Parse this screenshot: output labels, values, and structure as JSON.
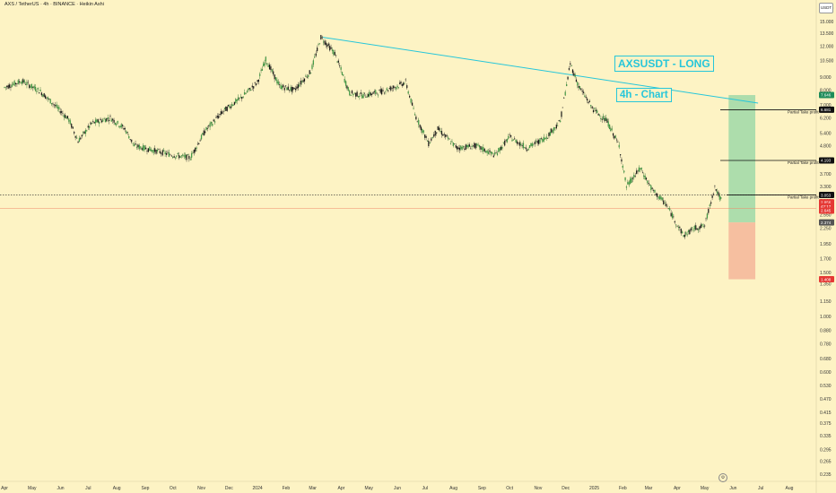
{
  "header": {
    "symbol": "AXS / TetherUS · 4h · BINANCE · Heikin Ashi"
  },
  "currency_badge": "USDT",
  "annotations": {
    "title": "AXSUSDT - LONG",
    "subtitle": "4h - Chart"
  },
  "colors": {
    "background": "#fdf3c4",
    "trendline": "#26c6da",
    "profit_zone": "#9fd8a8",
    "loss_zone": "#f5b59a",
    "candle_up": "#1b5e20",
    "candle_down": "#222222",
    "badge_green": "#1e8c5a",
    "badge_red": "#e53935",
    "badge_black": "#111111",
    "badge_gray": "#555555"
  },
  "partial_take_profit_label": "Partial Take profit",
  "price_badges": [
    {
      "text": "7.646",
      "price": 7.646,
      "color": "#1e8c5a"
    },
    {
      "text": "6.681",
      "price": 6.681,
      "color": "#111111"
    },
    {
      "text": "4.193",
      "price": 4.193,
      "color": "#111111"
    },
    {
      "text": "3.053",
      "price": 3.053,
      "color": "#111111"
    },
    {
      "text": "2.856",
      "price": 2.856,
      "color": "#e53935"
    },
    {
      "text": "42:17",
      "price": 2.75,
      "color": "#e53935"
    },
    {
      "text": "2.645",
      "price": 2.645,
      "color": "#e53935"
    },
    {
      "text": "2.374",
      "price": 2.374,
      "color": "#555555"
    },
    {
      "text": "1.408",
      "price": 1.408,
      "color": "#e53935"
    }
  ],
  "chart_data": {
    "type": "candlestick",
    "scale": "log",
    "y_ticks": [
      "17.000",
      "15.000",
      "13.500",
      "12.000",
      "10.500",
      "9.000",
      "8.000",
      "7.000",
      "6.200",
      "5.400",
      "4.800",
      "4.200",
      "3.700",
      "3.300",
      "2.900",
      "2.550",
      "2.250",
      "1.950",
      "1.700",
      "1.500",
      "1.350",
      "1.150",
      "1.000",
      "0.880",
      "0.780",
      "0.680",
      "0.600",
      "0.530",
      "0.470",
      "0.415",
      "0.375",
      "0.335",
      "0.295",
      "0.265",
      "0.235"
    ],
    "x_ticks": [
      "Apr",
      "May",
      "Jun",
      "Jul",
      "Aug",
      "Sep",
      "Oct",
      "Nov",
      "Dec",
      "2024",
      "Feb",
      "Mar",
      "Apr",
      "May",
      "Jun",
      "Jul",
      "Aug",
      "Sep",
      "Oct",
      "Nov",
      "Dec",
      "2025",
      "Feb",
      "Mar",
      "Apr",
      "May",
      "Jun",
      "Jul",
      "Aug"
    ],
    "price_path": [
      [
        "2023-04-01",
        8.2
      ],
      [
        "2023-04-20",
        8.7
      ],
      [
        "2023-05-10",
        7.9
      ],
      [
        "2023-05-25",
        7.0
      ],
      [
        "2023-06-10",
        6.1
      ],
      [
        "2023-06-20",
        5.0
      ],
      [
        "2023-07-05",
        5.9
      ],
      [
        "2023-07-25",
        6.2
      ],
      [
        "2023-08-10",
        5.6
      ],
      [
        "2023-08-20",
        4.8
      ],
      [
        "2023-09-10",
        4.6
      ],
      [
        "2023-10-01",
        4.4
      ],
      [
        "2023-10-20",
        4.3
      ],
      [
        "2023-11-05",
        5.5
      ],
      [
        "2023-11-25",
        6.6
      ],
      [
        "2023-12-15",
        7.5
      ],
      [
        "2024-01-01",
        8.6
      ],
      [
        "2024-01-10",
        10.6
      ],
      [
        "2024-01-25",
        8.3
      ],
      [
        "2024-02-10",
        8.0
      ],
      [
        "2024-02-28",
        9.5
      ],
      [
        "2024-03-10",
        13.0
      ],
      [
        "2024-03-25",
        11.2
      ],
      [
        "2024-04-10",
        7.8
      ],
      [
        "2024-04-25",
        7.6
      ],
      [
        "2024-05-15",
        7.9
      ],
      [
        "2024-06-01",
        8.3
      ],
      [
        "2024-06-10",
        8.6
      ],
      [
        "2024-06-20",
        6.4
      ],
      [
        "2024-07-05",
        4.9
      ],
      [
        "2024-07-15",
        5.6
      ],
      [
        "2024-08-05",
        4.7
      ],
      [
        "2024-08-25",
        4.8
      ],
      [
        "2024-09-15",
        4.4
      ],
      [
        "2024-10-01",
        5.2
      ],
      [
        "2024-10-20",
        4.7
      ],
      [
        "2024-11-10",
        5.2
      ],
      [
        "2024-11-25",
        6.0
      ],
      [
        "2024-12-06",
        10.2
      ],
      [
        "2024-12-15",
        8.3
      ],
      [
        "2024-12-31",
        6.7
      ],
      [
        "2025-01-15",
        6.0
      ],
      [
        "2025-01-28",
        4.8
      ],
      [
        "2025-02-05",
        3.3
      ],
      [
        "2025-02-20",
        3.9
      ],
      [
        "2025-03-05",
        3.2
      ],
      [
        "2025-03-20",
        2.8
      ],
      [
        "2025-04-08",
        2.1
      ],
      [
        "2025-04-20",
        2.25
      ],
      [
        "2025-05-01",
        2.3
      ],
      [
        "2025-05-12",
        3.3
      ],
      [
        "2025-05-20",
        2.85
      ]
    ],
    "trendline": {
      "from": [
        "2024-03-12",
        13.0
      ],
      "to": [
        "2025-06-28",
        7.1
      ]
    },
    "position": {
      "type": "long",
      "entry": 2.374,
      "target": 7.646,
      "stop": 1.408,
      "start": "2025-05-27",
      "end": "2025-06-25"
    },
    "levels": [
      {
        "price": 6.681,
        "label": "Partial Take profit"
      },
      {
        "price": 4.193,
        "label": "Partial Take profit"
      },
      {
        "price": 3.053,
        "label": "Partial Take profit"
      }
    ],
    "current_price_line": 2.856
  }
}
